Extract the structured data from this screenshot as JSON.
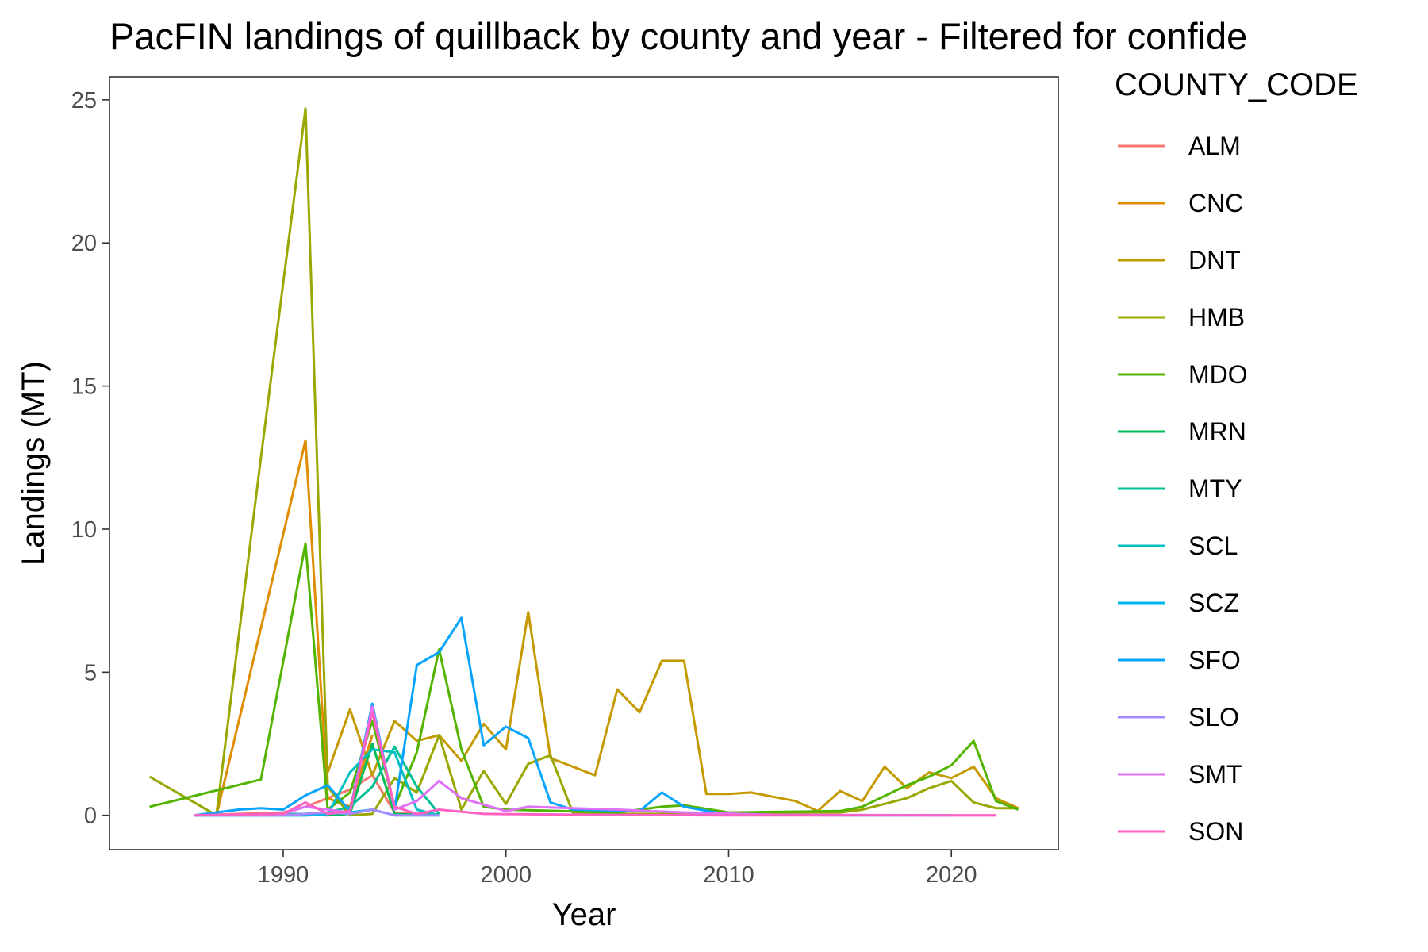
{
  "chart_data": {
    "type": "line",
    "title": "PacFIN landings of quillback by county and year - Filtered for confide",
    "xlabel": "Year",
    "ylabel": "Landings (MT)",
    "xlim": [
      1982.2,
      2024.8
    ],
    "ylim": [
      -1.2,
      25.8
    ],
    "x_ticks": [
      1990,
      2000,
      2010,
      2020
    ],
    "y_ticks": [
      0,
      5,
      10,
      15,
      20,
      25
    ],
    "grid": false,
    "legend": {
      "title": "COUNTY_CODE",
      "position": "right"
    },
    "series": [
      {
        "name": "ALM",
        "color": "#F8766D",
        "x": [
          1986,
          1990,
          1991,
          1992,
          1993,
          1994,
          1995,
          1996,
          1997
        ],
        "y": [
          0,
          0.1,
          0.3,
          0.6,
          0.9,
          1.4,
          0.1,
          0.05,
          0.02
        ]
      },
      {
        "name": "CNC",
        "color": "#DE8C00",
        "x": [
          1987,
          1991,
          1992,
          1993,
          1994
        ],
        "y": [
          0,
          13.1,
          0.6,
          0.3,
          2.8
        ]
      },
      {
        "name": "DNT",
        "color": "#C49A00",
        "x": [
          1992,
          1993,
          1994,
          1995,
          1996,
          1997,
          1998,
          1999,
          2000,
          2001,
          2002,
          2003,
          2004,
          2005,
          2006,
          2007,
          2008,
          2009,
          2010,
          2011,
          2012,
          2013,
          2014,
          2015,
          2016,
          2017,
          2018,
          2019,
          2020,
          2021,
          2022,
          2023
        ],
        "y": [
          1.5,
          3.7,
          1.4,
          3.3,
          2.6,
          2.8,
          1.9,
          3.2,
          2.3,
          7.1,
          2.0,
          1.7,
          1.4,
          4.4,
          3.6,
          5.4,
          5.4,
          0.75,
          0.75,
          0.8,
          0.65,
          0.5,
          0.15,
          0.85,
          0.5,
          1.7,
          0.95,
          1.5,
          1.3,
          1.7,
          0.6,
          0.25
        ]
      },
      {
        "name": "HMB",
        "color": "#99A800",
        "x": [
          1984,
          1987,
          1989,
          1991,
          1992,
          1993,
          1994,
          1995,
          1996,
          1997,
          1998,
          1999,
          2000,
          2001,
          2002,
          2003,
          2004,
          2010,
          2014,
          2015,
          2016,
          2017,
          2018,
          2019,
          2020,
          2021,
          2022,
          2023
        ],
        "y": [
          1.35,
          0,
          12.5,
          24.7,
          1.0,
          0,
          0.05,
          1.3,
          0.8,
          2.8,
          0.2,
          1.55,
          0.4,
          1.8,
          2.1,
          0.1,
          0.05,
          0.05,
          0.1,
          0.1,
          0.2,
          0.4,
          0.6,
          0.95,
          1.2,
          0.45,
          0.25,
          0.25
        ]
      },
      {
        "name": "MDO",
        "color": "#53B400",
        "x": [
          1984,
          1989,
          1991,
          1992,
          1993,
          1994,
          1995,
          1996,
          1997,
          1998,
          1999,
          2000,
          2005,
          2007,
          2008,
          2010,
          2015,
          2016,
          2018,
          2019,
          2020,
          2021,
          2022,
          2023
        ],
        "y": [
          0.3,
          1.25,
          9.5,
          0.2,
          0.8,
          3.3,
          0.3,
          2.2,
          5.8,
          2.3,
          0.3,
          0.2,
          0.1,
          0.3,
          0.35,
          0.1,
          0.15,
          0.3,
          1.05,
          1.35,
          1.75,
          2.6,
          0.5,
          0.2
        ]
      },
      {
        "name": "MRN",
        "color": "#00BC56",
        "x": [
          1986,
          1991,
          1992,
          1993,
          1994,
          1995,
          1996,
          1997
        ],
        "y": [
          0,
          0.05,
          0,
          0.05,
          2.5,
          0.05,
          0.02,
          0
        ]
      },
      {
        "name": "MTY",
        "color": "#00C094",
        "x": [
          1986,
          1991,
          1992,
          1993,
          1994,
          1995,
          1996,
          1997
        ],
        "y": [
          0,
          0.05,
          0.1,
          0.3,
          1.0,
          2.4,
          1.0,
          0.05
        ]
      },
      {
        "name": "SCL",
        "color": "#00BFC4",
        "x": [
          1986,
          1991,
          1992,
          1993,
          1994,
          1995,
          1996,
          1997
        ],
        "y": [
          0,
          0,
          0.02,
          1.5,
          2.3,
          2.2,
          0.2,
          0
        ]
      },
      {
        "name": "SCZ",
        "color": "#00B6EB",
        "x": [
          1986,
          1991,
          1992,
          1993,
          1994,
          1995,
          1996,
          1997
        ],
        "y": [
          0,
          0,
          0.05,
          0.1,
          0.2,
          0,
          0,
          0
        ]
      },
      {
        "name": "SFO",
        "color": "#06A4FF",
        "x": [
          1986,
          1988,
          1989,
          1990,
          1991,
          1992,
          1993,
          1994,
          1995,
          1996,
          1997,
          1998,
          1999,
          2000,
          2001,
          2002,
          2003,
          2006,
          2007,
          2008,
          2010,
          2015,
          2020
        ],
        "y": [
          0,
          0.2,
          0.25,
          0.2,
          0.7,
          1.05,
          0.15,
          3.9,
          0.2,
          5.25,
          5.7,
          6.9,
          2.45,
          3.1,
          2.7,
          0.45,
          0.2,
          0.15,
          0.8,
          0.3,
          0.02,
          0,
          0
        ]
      },
      {
        "name": "SLO",
        "color": "#A58AFF",
        "x": [
          1986,
          1990,
          1991,
          1992,
          1993,
          1994,
          1995,
          1996,
          1997
        ],
        "y": [
          0,
          0,
          0.05,
          0.1,
          0.05,
          0.2,
          0,
          0,
          0
        ]
      },
      {
        "name": "SMT",
        "color": "#DF70F8",
        "x": [
          1986,
          1990,
          1991,
          1992,
          1993,
          1994,
          1995,
          1996,
          1997,
          1998,
          2000,
          2001,
          2003,
          2005,
          2008,
          2012,
          2020,
          2022
        ],
        "y": [
          0,
          0.05,
          0.3,
          0.2,
          0.1,
          3.8,
          0.2,
          0.5,
          1.2,
          0.6,
          0.15,
          0.3,
          0.25,
          0.2,
          0.1,
          0.02,
          0,
          0
        ]
      },
      {
        "name": "SON",
        "color": "#FF61C3",
        "x": [
          1986,
          1990,
          1991,
          1992,
          1993,
          1994,
          1995,
          1996,
          1997,
          1999,
          2004,
          2010,
          2022
        ],
        "y": [
          0,
          0.05,
          0.45,
          0.05,
          0.15,
          3.6,
          0.3,
          0.05,
          0.2,
          0.05,
          0.02,
          0,
          0
        ]
      }
    ]
  }
}
